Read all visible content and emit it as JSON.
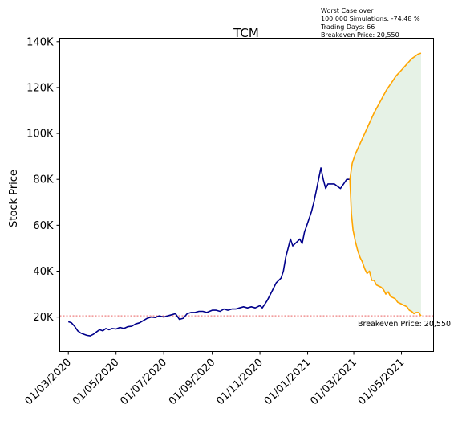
{
  "chart_data": {
    "type": "line",
    "title": "TCM",
    "xlabel": "",
    "ylabel": "Stock Price",
    "x_tick_labels": [
      "01/03/2020",
      "01/05/2020",
      "01/07/2020",
      "01/09/2020",
      "01/11/2020",
      "01/01/2021",
      "01/03/2021",
      "01/05/2021"
    ],
    "x_tick_dates": [
      "2020-03-01",
      "2020-05-01",
      "2020-07-01",
      "2020-09-01",
      "2020-11-01",
      "2021-01-01",
      "2021-03-01",
      "2021-05-01"
    ],
    "y_tick_values": [
      20000,
      40000,
      60000,
      80000,
      100000,
      120000,
      140000
    ],
    "y_tick_labels": [
      "20K",
      "40K",
      "60K",
      "80K",
      "100K",
      "120K",
      "140K"
    ],
    "xlim": [
      "2020-02-19",
      "2021-06-11"
    ],
    "ylim": [
      5000,
      141500
    ],
    "grid": false,
    "series": [
      {
        "color": "#00008b",
        "points": [
          [
            "2020-03-01",
            18000
          ],
          [
            "2020-03-05",
            17500
          ],
          [
            "2020-03-09",
            16000
          ],
          [
            "2020-03-13",
            14000
          ],
          [
            "2020-03-17",
            13000
          ],
          [
            "2020-03-21",
            12500
          ],
          [
            "2020-03-25",
            12000
          ],
          [
            "2020-03-29",
            11800
          ],
          [
            "2020-04-02",
            12500
          ],
          [
            "2020-04-06",
            13500
          ],
          [
            "2020-04-10",
            14500
          ],
          [
            "2020-04-14",
            14000
          ],
          [
            "2020-04-18",
            15000
          ],
          [
            "2020-04-22",
            14500
          ],
          [
            "2020-04-26",
            15000
          ],
          [
            "2020-05-01",
            14800
          ],
          [
            "2020-05-06",
            15500
          ],
          [
            "2020-05-11",
            15000
          ],
          [
            "2020-05-16",
            15800
          ],
          [
            "2020-05-21",
            16000
          ],
          [
            "2020-05-26",
            17000
          ],
          [
            "2020-05-31",
            17500
          ],
          [
            "2020-06-05",
            18500
          ],
          [
            "2020-06-10",
            19500
          ],
          [
            "2020-06-15",
            20000
          ],
          [
            "2020-06-20",
            19800
          ],
          [
            "2020-06-25",
            20500
          ],
          [
            "2020-07-01",
            20000
          ],
          [
            "2020-07-06",
            20500
          ],
          [
            "2020-07-11",
            21000
          ],
          [
            "2020-07-16",
            21500
          ],
          [
            "2020-07-21",
            19000
          ],
          [
            "2020-07-26",
            19500
          ],
          [
            "2020-07-31",
            21500
          ],
          [
            "2020-08-05",
            22000
          ],
          [
            "2020-08-10",
            22000
          ],
          [
            "2020-08-15",
            22500
          ],
          [
            "2020-08-20",
            22500
          ],
          [
            "2020-08-25",
            22000
          ],
          [
            "2020-09-01",
            23000
          ],
          [
            "2020-09-06",
            23000
          ],
          [
            "2020-09-11",
            22500
          ],
          [
            "2020-09-16",
            23500
          ],
          [
            "2020-09-21",
            23000
          ],
          [
            "2020-09-26",
            23500
          ],
          [
            "2020-10-01",
            23500
          ],
          [
            "2020-10-06",
            24000
          ],
          [
            "2020-10-11",
            24500
          ],
          [
            "2020-10-16",
            24000
          ],
          [
            "2020-10-21",
            24500
          ],
          [
            "2020-10-26",
            24000
          ],
          [
            "2020-11-01",
            25000
          ],
          [
            "2020-11-04",
            24000
          ],
          [
            "2020-11-07",
            25500
          ],
          [
            "2020-11-10",
            27000
          ],
          [
            "2020-11-13",
            29000
          ],
          [
            "2020-11-16",
            31000
          ],
          [
            "2020-11-19",
            33000
          ],
          [
            "2020-11-22",
            35000
          ],
          [
            "2020-11-25",
            36000
          ],
          [
            "2020-11-28",
            37000
          ],
          [
            "2020-12-01",
            40000
          ],
          [
            "2020-12-04",
            46000
          ],
          [
            "2020-12-07",
            50000
          ],
          [
            "2020-12-10",
            54000
          ],
          [
            "2020-12-13",
            51000
          ],
          [
            "2020-12-16",
            52000
          ],
          [
            "2020-12-19",
            53000
          ],
          [
            "2020-12-22",
            54000
          ],
          [
            "2020-12-25",
            52000
          ],
          [
            "2020-12-28",
            57000
          ],
          [
            "2020-12-31",
            60000
          ],
          [
            "2021-01-03",
            63000
          ],
          [
            "2021-01-06",
            66000
          ],
          [
            "2021-01-09",
            70000
          ],
          [
            "2021-01-12",
            75000
          ],
          [
            "2021-01-15",
            80000
          ],
          [
            "2021-01-18",
            85000
          ],
          [
            "2021-01-21",
            80000
          ],
          [
            "2021-01-24",
            76000
          ],
          [
            "2021-01-27",
            78000
          ],
          [
            "2021-01-31",
            78000
          ],
          [
            "2021-02-04",
            78000
          ],
          [
            "2021-02-08",
            77000
          ],
          [
            "2021-02-12",
            76000
          ],
          [
            "2021-02-16",
            78000
          ],
          [
            "2021-02-20",
            80000
          ],
          [
            "2021-02-24",
            80000
          ]
        ]
      },
      {
        "color": "#ffa500",
        "points": [
          [
            "2021-02-24",
            80000
          ],
          [
            "2021-02-27",
            87000
          ],
          [
            "2021-03-03",
            91000
          ],
          [
            "2021-03-07",
            94000
          ],
          [
            "2021-03-11",
            97000
          ],
          [
            "2021-03-15",
            100000
          ],
          [
            "2021-03-19",
            103000
          ],
          [
            "2021-03-23",
            106000
          ],
          [
            "2021-03-27",
            109000
          ],
          [
            "2021-03-31",
            111500
          ],
          [
            "2021-04-04",
            114000
          ],
          [
            "2021-04-08",
            116500
          ],
          [
            "2021-04-12",
            119000
          ],
          [
            "2021-04-16",
            121000
          ],
          [
            "2021-04-20",
            123000
          ],
          [
            "2021-04-24",
            125000
          ],
          [
            "2021-04-28",
            126500
          ],
          [
            "2021-05-02",
            128000
          ],
          [
            "2021-05-06",
            129500
          ],
          [
            "2021-05-10",
            131000
          ],
          [
            "2021-05-14",
            132500
          ],
          [
            "2021-05-18",
            133500
          ],
          [
            "2021-05-22",
            134500
          ],
          [
            "2021-05-26",
            135000
          ]
        ]
      },
      {
        "color": "#ffa500",
        "points": [
          [
            "2021-02-24",
            80000
          ],
          [
            "2021-02-26",
            65000
          ],
          [
            "2021-02-28",
            58000
          ],
          [
            "2021-03-03",
            53000
          ],
          [
            "2021-03-06",
            49000
          ],
          [
            "2021-03-09",
            46000
          ],
          [
            "2021-03-12",
            44000
          ],
          [
            "2021-03-15",
            41000
          ],
          [
            "2021-03-18",
            39000
          ],
          [
            "2021-03-21",
            40000
          ],
          [
            "2021-03-24",
            36000
          ],
          [
            "2021-03-27",
            36000
          ],
          [
            "2021-03-30",
            34000
          ],
          [
            "2021-04-02",
            33500
          ],
          [
            "2021-04-05",
            33000
          ],
          [
            "2021-04-08",
            32000
          ],
          [
            "2021-04-11",
            30000
          ],
          [
            "2021-04-14",
            31000
          ],
          [
            "2021-04-17",
            29000
          ],
          [
            "2021-04-20",
            28500
          ],
          [
            "2021-04-23",
            28000
          ],
          [
            "2021-04-26",
            26500
          ],
          [
            "2021-04-29",
            26000
          ],
          [
            "2021-05-02",
            25500
          ],
          [
            "2021-05-05",
            25000
          ],
          [
            "2021-05-08",
            24500
          ],
          [
            "2021-05-11",
            23000
          ],
          [
            "2021-05-14",
            22500
          ],
          [
            "2021-05-17",
            21500
          ],
          [
            "2021-05-20",
            22000
          ],
          [
            "2021-05-23",
            22000
          ],
          [
            "2021-05-26",
            20500
          ]
        ]
      }
    ],
    "shaded_region": {
      "color": "#e6f2e6",
      "between_series": [
        1,
        2
      ]
    },
    "breakeven_line": {
      "value": 20550,
      "color": "#dd0000",
      "style": "dashed",
      "label": "Breakeven Price: 20,550"
    },
    "annotation_lines": [
      "Worst Case over",
      "100,000 Simulations: -74.48 %",
      "Trading Days: 66",
      "Breakeven Price: 20,550"
    ]
  }
}
